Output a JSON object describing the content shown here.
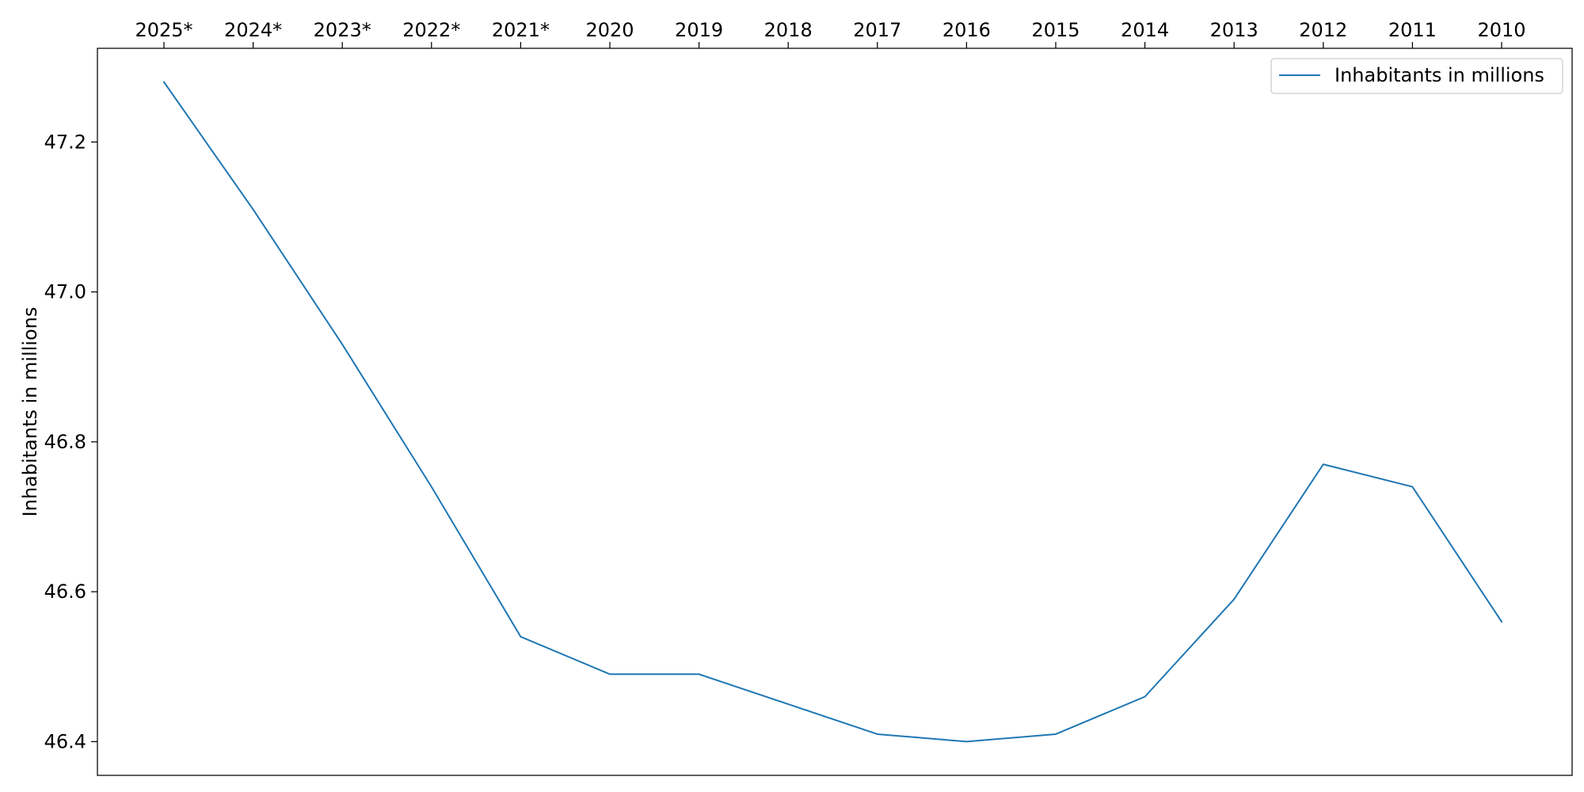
{
  "chart_data": {
    "type": "line",
    "title": "",
    "xlabel": "",
    "ylabel": "Inhabitants in millions",
    "x_axis_position": "top",
    "categories": [
      "2025*",
      "2024*",
      "2023*",
      "2022*",
      "2021*",
      "2020",
      "2019",
      "2018",
      "2017",
      "2016",
      "2015",
      "2014",
      "2013",
      "2012",
      "2011",
      "2010"
    ],
    "series": [
      {
        "name": "Inhabitants in millions",
        "color": "#1f77b4",
        "values": [
          47.28,
          47.11,
          46.93,
          46.74,
          46.54,
          46.49,
          46.49,
          46.45,
          46.41,
          46.4,
          46.41,
          46.46,
          46.59,
          46.77,
          46.74,
          46.56
        ]
      }
    ],
    "ylim": [
      46.355,
      47.325
    ],
    "yticks": [
      "46.4",
      "46.6",
      "46.8",
      "47.0",
      "47.2"
    ],
    "grid": false,
    "legend_position": "top-right"
  }
}
